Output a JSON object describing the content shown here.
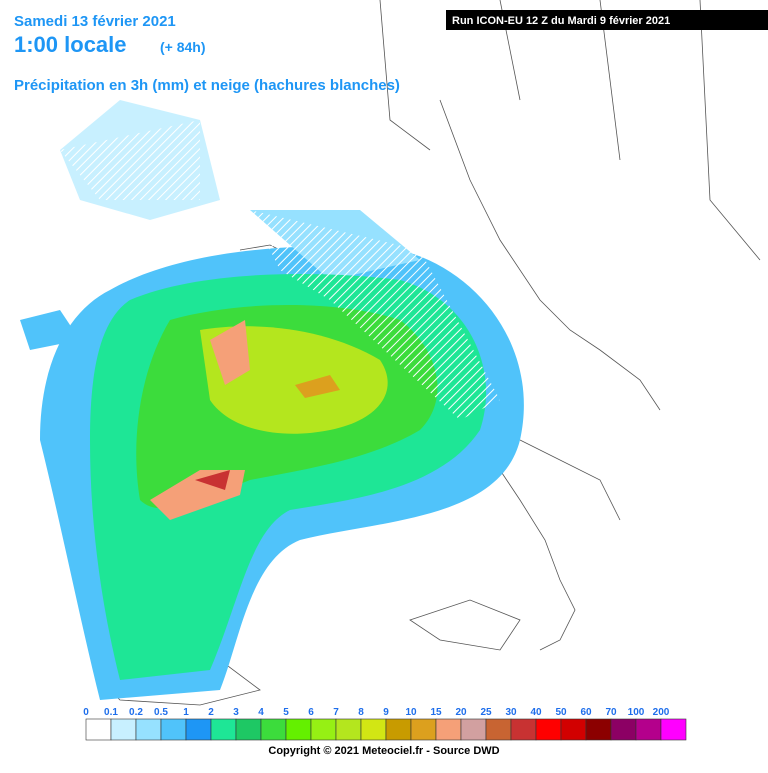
{
  "header": {
    "title": "Samedi 13 février 2021",
    "time": "1:00 locale",
    "lead": "(+ 84h)",
    "subtitle": "Précipitation en 3h (mm) et neige (hachures blanches)",
    "run": "Run ICON-EU 12 Z du Mardi 9 février 2021"
  },
  "legend": {
    "items": [
      {
        "value": 0,
        "color": "#ffffff"
      },
      {
        "value": 0.1,
        "color": "#c8f0ff"
      },
      {
        "value": 0.2,
        "color": "#96e1ff"
      },
      {
        "value": 0.5,
        "color": "#50c3fa"
      },
      {
        "value": 1,
        "color": "#1e96f5"
      },
      {
        "value": 2,
        "color": "#1ee696"
      },
      {
        "value": 3,
        "color": "#1ec864"
      },
      {
        "value": 4,
        "color": "#3cdc3c"
      },
      {
        "value": 5,
        "color": "#64f000"
      },
      {
        "value": 6,
        "color": "#96f014"
      },
      {
        "value": 7,
        "color": "#b4e61e"
      },
      {
        "value": 8,
        "color": "#d2e614"
      },
      {
        "value": 9,
        "color": "#c89b00"
      },
      {
        "value": 10,
        "color": "#dca01e"
      },
      {
        "value": 15,
        "color": "#f5a078"
      },
      {
        "value": 20,
        "color": "#d2a0a0"
      },
      {
        "value": 25,
        "color": "#c86432"
      },
      {
        "value": 30,
        "color": "#c83232"
      },
      {
        "value": 40,
        "color": "#ff0000"
      },
      {
        "value": 50,
        "color": "#d20000"
      },
      {
        "value": 60,
        "color": "#8c0000"
      },
      {
        "value": 70,
        "color": "#8c0064"
      },
      {
        "value": 100,
        "color": "#b4008c"
      },
      {
        "value": 200,
        "color": "#ff00ff"
      }
    ]
  },
  "footer": "Copyright © 2021 Meteociel.fr - Source DWD"
}
